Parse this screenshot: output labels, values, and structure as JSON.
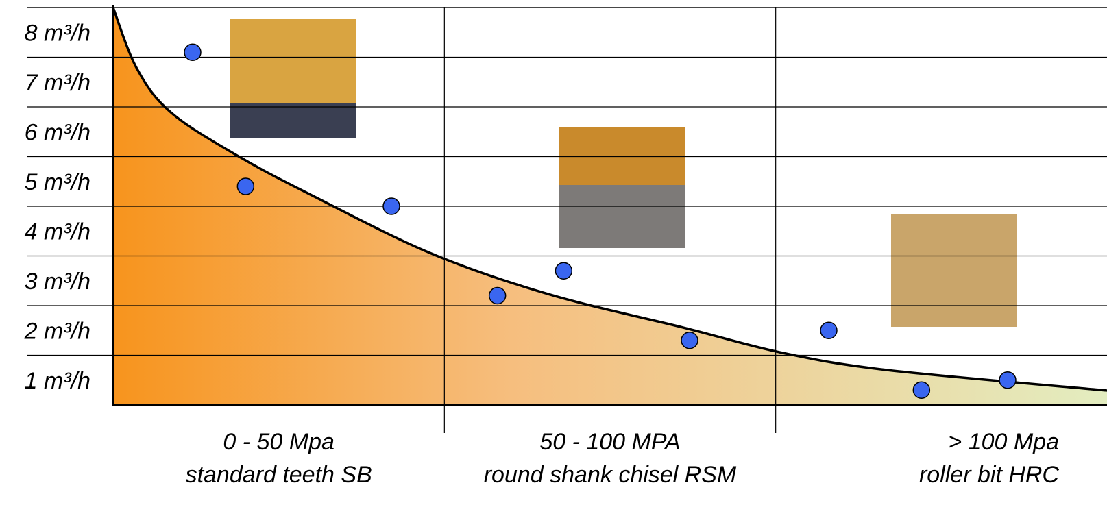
{
  "chart_data": {
    "type": "scatter",
    "xlim": [
      0,
      150
    ],
    "xticks": [
      50,
      100
    ],
    "ylim": [
      0,
      8
    ],
    "yticks": [
      {
        "value": 1,
        "label": "1 m³/h"
      },
      {
        "value": 2,
        "label": "2 m³/h"
      },
      {
        "value": 3,
        "label": "3 m³/h"
      },
      {
        "value": 4,
        "label": "4 m³/h"
      },
      {
        "value": 5,
        "label": "5 m³/h"
      },
      {
        "value": 6,
        "label": "6 m³/h"
      },
      {
        "value": 7,
        "label": "7 m³/h"
      },
      {
        "value": 8,
        "label": "8 m³/h"
      }
    ],
    "grid": true,
    "color": "#3a66f0",
    "x": [
      12,
      20,
      42,
      58,
      68,
      87,
      108,
      122,
      135
    ],
    "values": [
      7.1,
      4.4,
      4.0,
      2.2,
      2.7,
      1.3,
      1.5,
      0.3,
      0.5
    ],
    "trend": {
      "x": [
        0,
        3.6,
        8.8,
        19,
        30,
        48,
        66,
        86,
        101,
        117,
        150
      ],
      "values": [
        8.0,
        6.77,
        5.88,
        5.0,
        4.22,
        3.05,
        2.22,
        1.56,
        1.05,
        0.7,
        0.29
      ]
    },
    "zones": [
      {
        "range": "0 - 50 Mpa",
        "tool": "standard teeth SB"
      },
      {
        "range": "50 - 100 MPA",
        "tool": "round shank chisel RSM"
      },
      {
        "range": "> 100 Mpa",
        "tool": "roller bit HRC"
      }
    ]
  }
}
